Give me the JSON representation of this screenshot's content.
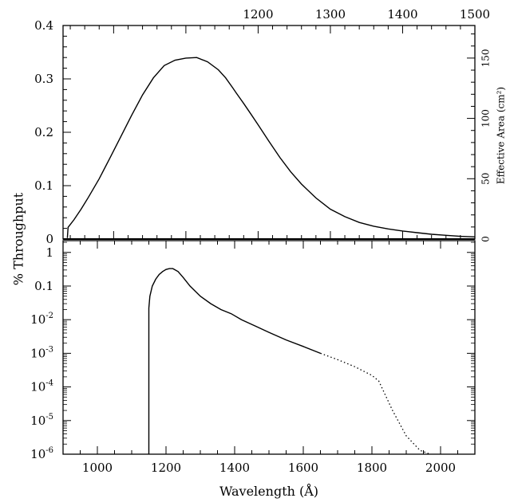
{
  "chart_data": [
    {
      "type": "line",
      "panel": "top",
      "y_scale": "linear",
      "xlim": [
        930,
        1500
      ],
      "ylim": [
        0,
        0.4
      ],
      "top_ticks": [
        {
          "value": 1200,
          "label": "1200"
        },
        {
          "value": 1300,
          "label": "1300"
        },
        {
          "value": 1400,
          "label": "1400"
        },
        {
          "value": 1500,
          "label": "1500"
        }
      ],
      "left_ticks": [
        {
          "value": 0,
          "label": "0"
        },
        {
          "value": 0.1,
          "label": "0.1"
        },
        {
          "value": 0.2,
          "label": "0.2"
        },
        {
          "value": 0.3,
          "label": "0.3"
        },
        {
          "value": 0.4,
          "label": "0.4"
        }
      ],
      "right_axis_label": "Effective Area (cm²)",
      "right_ticks": [
        {
          "value": 0,
          "label": "0"
        },
        {
          "value": 50,
          "label": "50"
        },
        {
          "value": 100,
          "label": "100"
        },
        {
          "value": 150,
          "label": "150"
        }
      ],
      "right_ylim": [
        0,
        177
      ],
      "series": [
        {
          "style": "solid",
          "x": [
            936,
            937,
            945,
            955,
            965,
            980,
            995,
            1010,
            1025,
            1040,
            1055,
            1070,
            1085,
            1100,
            1115,
            1130,
            1145,
            1155,
            1165,
            1170,
            1180,
            1190,
            1200,
            1215,
            1230,
            1245,
            1260,
            1280,
            1300,
            1320,
            1340,
            1360,
            1380,
            1400,
            1420,
            1440,
            1460,
            1480,
            1500
          ],
          "y": [
            0.002,
            0.022,
            0.036,
            0.056,
            0.078,
            0.113,
            0.152,
            0.192,
            0.232,
            0.27,
            0.302,
            0.325,
            0.335,
            0.339,
            0.34,
            0.332,
            0.317,
            0.302,
            0.283,
            0.273,
            0.254,
            0.234,
            0.214,
            0.183,
            0.153,
            0.126,
            0.103,
            0.077,
            0.056,
            0.042,
            0.031,
            0.024,
            0.019,
            0.015,
            0.012,
            0.009,
            0.007,
            0.005,
            0.004
          ]
        }
      ]
    },
    {
      "type": "line",
      "panel": "bottom",
      "y_scale": "log",
      "xlim": [
        900,
        2100
      ],
      "ylim_exponent": [
        -6,
        0.35
      ],
      "xlabel": "Wavelength (Å)",
      "ylabel": "% Throughput",
      "bottom_ticks": [
        {
          "value": 1000,
          "label": "1000"
        },
        {
          "value": 1200,
          "label": "1200"
        },
        {
          "value": 1400,
          "label": "1400"
        },
        {
          "value": 1600,
          "label": "1600"
        },
        {
          "value": 1800,
          "label": "1800"
        },
        {
          "value": 2000,
          "label": "2000"
        }
      ],
      "left_ticks": [
        {
          "exp": 0,
          "label": "1"
        },
        {
          "exp": -1,
          "label": "0.1"
        },
        {
          "exp": -2,
          "base": "10",
          "sup": "-2"
        },
        {
          "exp": -3,
          "base": "10",
          "sup": "-3"
        },
        {
          "exp": -4,
          "base": "10",
          "sup": "-4"
        },
        {
          "exp": -5,
          "base": "10",
          "sup": "-5"
        },
        {
          "exp": -6,
          "base": "10",
          "sup": "-6"
        }
      ],
      "series": [
        {
          "style": "solid",
          "x": [
            1150,
            1150,
            1153,
            1160,
            1170,
            1180,
            1190,
            1200,
            1210,
            1220,
            1235,
            1250,
            1270,
            1300,
            1330,
            1360,
            1390,
            1420,
            1460,
            1500,
            1550,
            1600,
            1650
          ],
          "y": [
            1e-06,
            0.022,
            0.05,
            0.1,
            0.16,
            0.22,
            0.27,
            0.31,
            0.33,
            0.33,
            0.27,
            0.18,
            0.1,
            0.05,
            0.03,
            0.02,
            0.015,
            0.01,
            0.0065,
            0.0042,
            0.0025,
            0.0016,
            0.001
          ]
        },
        {
          "style": "dotted",
          "x": [
            1650,
            1700,
            1750,
            1800,
            1820,
            1860,
            1900,
            1940,
            1970
          ],
          "y": [
            0.001,
            0.00065,
            0.0004,
            0.00022,
            0.00015,
            2e-05,
            3.5e-06,
            1.3e-06,
            1e-06
          ]
        }
      ]
    }
  ]
}
